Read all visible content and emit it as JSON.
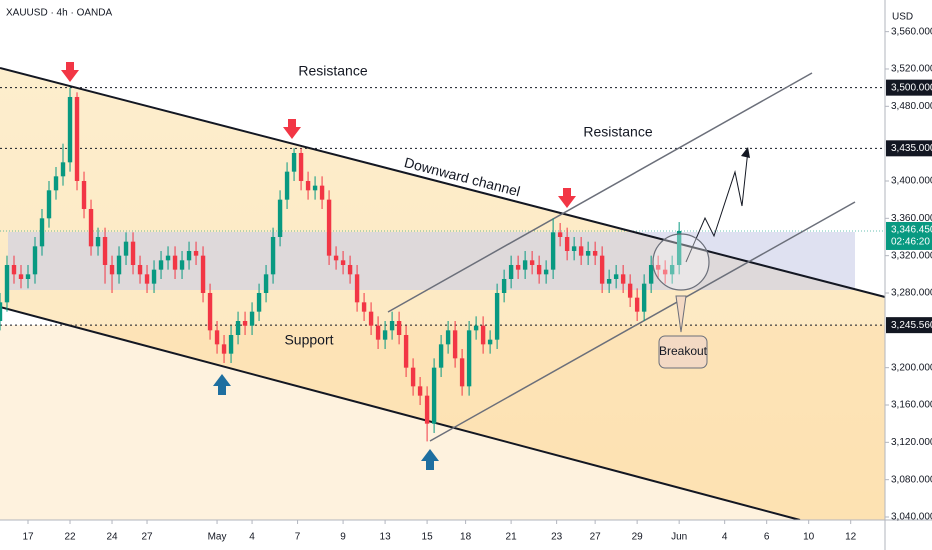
{
  "chart_data": {
    "type": "candlestick",
    "title": "XAUUSD · 4h · OANDA",
    "currency": "USD",
    "up_color": "#089981",
    "down_color": "#f23645",
    "xlim": [
      0,
      126.4
    ],
    "ylim": [
      3036.8,
      3593.9
    ],
    "xticks": [
      {
        "value": 4,
        "label": "17"
      },
      {
        "value": 10,
        "label": "22"
      },
      {
        "value": 16,
        "label": "24"
      },
      {
        "value": 21,
        "label": "27"
      },
      {
        "value": 31,
        "label": "May"
      },
      {
        "value": 36,
        "label": "4"
      },
      {
        "value": 42.5,
        "label": "7"
      },
      {
        "value": 49,
        "label": "9"
      },
      {
        "value": 55,
        "label": "13"
      },
      {
        "value": 61,
        "label": "15"
      },
      {
        "value": 66.5,
        "label": "18"
      },
      {
        "value": 73,
        "label": "21"
      },
      {
        "value": 79.5,
        "label": "23"
      },
      {
        "value": 85,
        "label": "27"
      },
      {
        "value": 91,
        "label": "29"
      },
      {
        "value": 97,
        "label": "Jun"
      },
      {
        "value": 103.5,
        "label": "4"
      },
      {
        "value": 109.5,
        "label": "6"
      },
      {
        "value": 115.5,
        "label": "10"
      },
      {
        "value": 121.5,
        "label": "12"
      }
    ],
    "yticks": [
      {
        "value": 3040,
        "label": "3,040.000"
      },
      {
        "value": 3080,
        "label": "3,080.000"
      },
      {
        "value": 3120,
        "label": "3,120.000"
      },
      {
        "value": 3160,
        "label": "3,160.000"
      },
      {
        "value": 3200,
        "label": "3,200.000"
      },
      {
        "value": 3280,
        "label": "3,280.000"
      },
      {
        "value": 3320,
        "label": "3,320.000"
      },
      {
        "value": 3360,
        "label": "3,360.000"
      },
      {
        "value": 3400,
        "label": "3,400.000"
      },
      {
        "value": 3480,
        "label": "3,480.000"
      },
      {
        "value": 3520,
        "label": "3,520.000"
      },
      {
        "value": 3560,
        "label": "3,560.000"
      }
    ],
    "levels": [
      {
        "value": 3500,
        "label": "3,500.000"
      },
      {
        "value": 3435,
        "label": "3,435.000"
      },
      {
        "value": 3245.56,
        "label": "3,245.560"
      }
    ],
    "last": {
      "value": 3346.45,
      "label": "3,346.450",
      "countdown": "02:46:20"
    },
    "annotations": [
      "Resistance",
      "Resistance",
      "Downward channel",
      "Support",
      "Breakout"
    ],
    "open": [
      3250,
      3270,
      3310,
      3300,
      3295,
      3300,
      3330,
      3360,
      3390,
      3405,
      3420,
      3490,
      3400,
      3370,
      3330,
      3340,
      3310,
      3300,
      3320,
      3335,
      3310,
      3300,
      3290,
      3305,
      3315,
      3320,
      3305,
      3315,
      3325,
      3320,
      3280,
      3240,
      3225,
      3215,
      3235,
      3250,
      3245,
      3260,
      3280,
      3300,
      3340,
      3380,
      3410,
      3430,
      3400,
      3390,
      3395,
      3380,
      3320,
      3315,
      3310,
      3300,
      3270,
      3260,
      3245,
      3230,
      3240,
      3250,
      3235,
      3200,
      3180,
      3170,
      3140,
      3200,
      3225,
      3240,
      3210,
      3180,
      3240,
      3245,
      3225,
      3230,
      3280,
      3295,
      3310,
      3305,
      3315,
      3310,
      3300,
      3305,
      3345,
      3340,
      3325,
      3330,
      3320,
      3325,
      3320,
      3290,
      3295,
      3300,
      3290,
      3275,
      3260,
      3290,
      3310,
      3305,
      3300,
      3310
    ],
    "high": [
      3280,
      3320,
      3320,
      3310,
      3310,
      3340,
      3370,
      3400,
      3415,
      3440,
      3500,
      3495,
      3410,
      3380,
      3350,
      3350,
      3320,
      3330,
      3345,
      3345,
      3320,
      3310,
      3315,
      3325,
      3330,
      3330,
      3325,
      3335,
      3335,
      3330,
      3290,
      3250,
      3235,
      3245,
      3260,
      3260,
      3270,
      3290,
      3310,
      3350,
      3390,
      3420,
      3435,
      3435,
      3410,
      3405,
      3405,
      3390,
      3330,
      3325,
      3320,
      3310,
      3280,
      3270,
      3255,
      3250,
      3260,
      3260,
      3245,
      3210,
      3190,
      3180,
      3210,
      3235,
      3250,
      3250,
      3220,
      3250,
      3255,
      3255,
      3240,
      3290,
      3305,
      3320,
      3320,
      3325,
      3325,
      3320,
      3315,
      3360,
      3355,
      3350,
      3340,
      3340,
      3335,
      3335,
      3330,
      3305,
      3310,
      3310,
      3300,
      3285,
      3300,
      3320,
      3320,
      3315,
      3320,
      3356
    ],
    "low": [
      3240,
      3260,
      3290,
      3285,
      3285,
      3290,
      3320,
      3350,
      3380,
      3395,
      3410,
      3390,
      3360,
      3320,
      3320,
      3290,
      3280,
      3290,
      3310,
      3300,
      3290,
      3280,
      3280,
      3295,
      3305,
      3295,
      3295,
      3305,
      3310,
      3270,
      3230,
      3215,
      3205,
      3205,
      3225,
      3235,
      3235,
      3250,
      3270,
      3290,
      3330,
      3370,
      3400,
      3390,
      3380,
      3380,
      3370,
      3310,
      3305,
      3300,
      3290,
      3260,
      3250,
      3235,
      3220,
      3220,
      3230,
      3225,
      3190,
      3170,
      3160,
      3121,
      3130,
      3190,
      3215,
      3200,
      3170,
      3170,
      3230,
      3215,
      3215,
      3220,
      3270,
      3285,
      3295,
      3295,
      3300,
      3290,
      3290,
      3295,
      3330,
      3315,
      3315,
      3310,
      3310,
      3310,
      3280,
      3280,
      3285,
      3280,
      3265,
      3250,
      3250,
      3280,
      3295,
      3290,
      3290,
      3300
    ],
    "close": [
      3270,
      3310,
      3300,
      3295,
      3300,
      3330,
      3360,
      3390,
      3405,
      3420,
      3490,
      3400,
      3370,
      3330,
      3340,
      3310,
      3300,
      3320,
      3335,
      3310,
      3300,
      3290,
      3305,
      3315,
      3320,
      3305,
      3315,
      3325,
      3320,
      3280,
      3240,
      3225,
      3215,
      3235,
      3250,
      3245,
      3260,
      3280,
      3300,
      3340,
      3380,
      3410,
      3430,
      3400,
      3390,
      3395,
      3380,
      3320,
      3315,
      3310,
      3300,
      3270,
      3260,
      3245,
      3230,
      3240,
      3250,
      3235,
      3200,
      3180,
      3170,
      3140,
      3200,
      3225,
      3240,
      3210,
      3180,
      3240,
      3245,
      3225,
      3230,
      3280,
      3295,
      3310,
      3305,
      3315,
      3310,
      3300,
      3305,
      3345,
      3340,
      3325,
      3330,
      3320,
      3325,
      3320,
      3290,
      3295,
      3300,
      3290,
      3275,
      3260,
      3290,
      3310,
      3305,
      3300,
      3310,
      3346.45
    ]
  }
}
